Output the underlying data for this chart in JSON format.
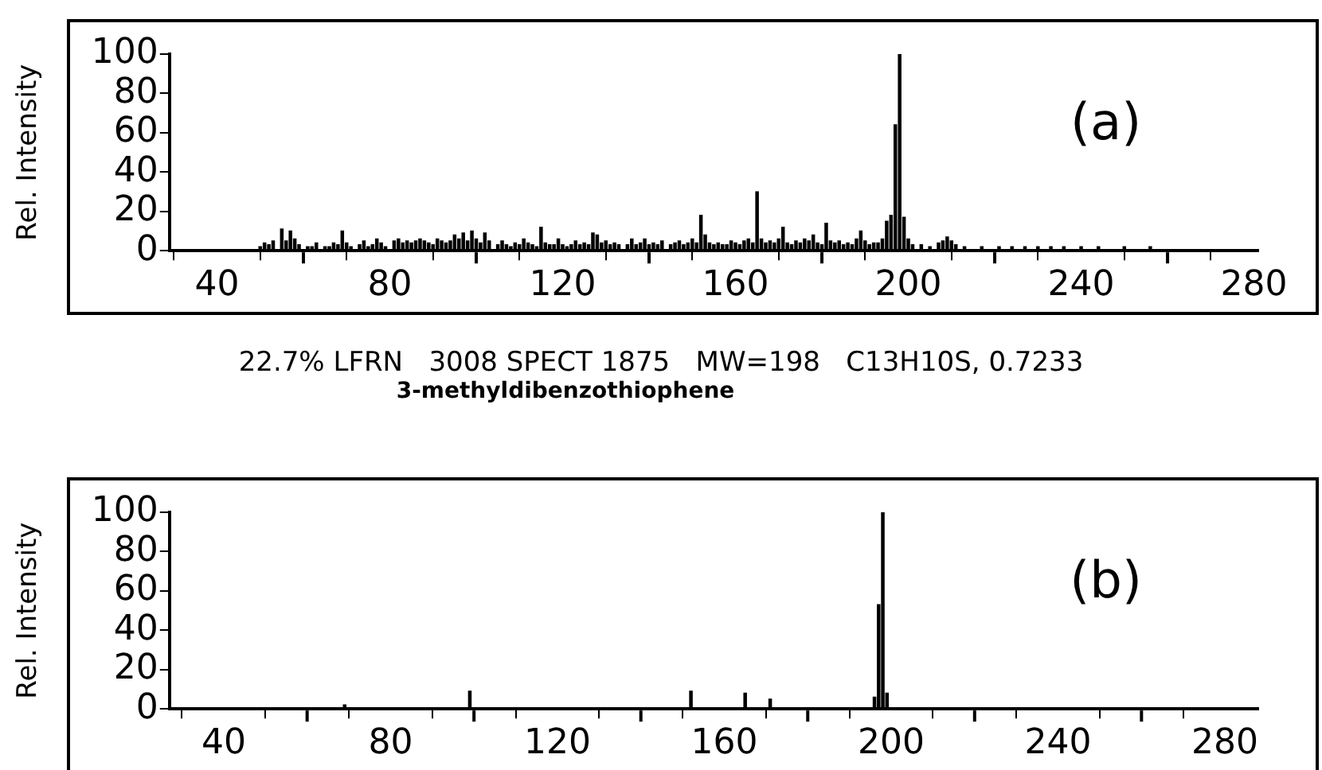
{
  "chart_data": [
    {
      "type": "bar",
      "ylabel": "Rel. Intensity",
      "annotations": [
        "(a)"
      ],
      "color": "#000000",
      "x": [
        50,
        51,
        52,
        53,
        55,
        56,
        57,
        58,
        59,
        61,
        62,
        63,
        65,
        66,
        67,
        68,
        69,
        70,
        71,
        73,
        74,
        75,
        76,
        77,
        78,
        79,
        81,
        82,
        83,
        84,
        85,
        86,
        87,
        88,
        89,
        90,
        91,
        92,
        93,
        94,
        95,
        96,
        97,
        98,
        99,
        100,
        101,
        102,
        103,
        105,
        106,
        107,
        108,
        109,
        110,
        111,
        112,
        113,
        114,
        115,
        116,
        117,
        118,
        119,
        120,
        121,
        122,
        123,
        124,
        125,
        126,
        127,
        128,
        129,
        130,
        131,
        132,
        133,
        135,
        136,
        137,
        138,
        139,
        140,
        141,
        142,
        143,
        145,
        146,
        147,
        148,
        149,
        150,
        151,
        152,
        153,
        154,
        155,
        156,
        157,
        158,
        159,
        160,
        161,
        162,
        163,
        164,
        165,
        166,
        167,
        168,
        169,
        170,
        171,
        172,
        173,
        174,
        175,
        176,
        177,
        178,
        179,
        180,
        181,
        182,
        183,
        184,
        185,
        186,
        187,
        188,
        189,
        190,
        191,
        192,
        193,
        194,
        195,
        196,
        197,
        198,
        199,
        200,
        201,
        203,
        205,
        207,
        208,
        209,
        210,
        211,
        213,
        217,
        221,
        224,
        227,
        230,
        233,
        236,
        240,
        244,
        250,
        256
      ],
      "values": [
        2,
        4,
        3,
        5,
        11,
        5,
        10,
        6,
        3,
        2,
        2,
        4,
        2,
        2,
        4,
        3,
        10,
        4,
        2,
        3,
        5,
        2,
        3,
        6,
        4,
        2,
        5,
        6,
        4,
        5,
        4,
        5,
        6,
        5,
        4,
        3,
        6,
        5,
        4,
        5,
        8,
        6,
        9,
        5,
        10,
        6,
        4,
        9,
        5,
        3,
        5,
        3,
        2,
        4,
        3,
        6,
        4,
        3,
        2,
        12,
        4,
        3,
        3,
        6,
        3,
        2,
        3,
        5,
        3,
        4,
        3,
        9,
        8,
        4,
        5,
        3,
        4,
        3,
        3,
        6,
        3,
        4,
        6,
        3,
        4,
        3,
        5,
        3,
        4,
        5,
        3,
        4,
        6,
        4,
        18,
        8,
        4,
        3,
        4,
        3,
        3,
        5,
        4,
        3,
        5,
        6,
        4,
        30,
        6,
        4,
        5,
        4,
        6,
        12,
        4,
        3,
        5,
        4,
        6,
        5,
        8,
        4,
        3,
        14,
        5,
        4,
        5,
        3,
        4,
        3,
        6,
        10,
        5,
        3,
        4,
        4,
        6,
        15,
        18,
        64,
        100,
        17,
        6,
        3,
        3,
        2,
        4,
        5,
        7,
        5,
        3,
        2,
        2,
        2,
        2,
        2,
        2,
        2,
        2,
        2,
        2,
        2,
        2
      ],
      "xlim": [
        29,
        281
      ],
      "xticks": [
        40,
        {
          "value": 60,
          "label": null
        },
        80,
        {
          "value": 100,
          "label": null
        },
        120,
        {
          "value": 140,
          "label": null
        },
        160,
        {
          "value": 180,
          "label": null
        },
        200,
        {
          "value": 220,
          "label": null
        },
        240,
        {
          "value": 260,
          "label": null
        },
        280
      ],
      "ylim": [
        0,
        100
      ],
      "yticks": [
        0,
        20,
        40,
        60,
        80,
        100
      ],
      "grid": false,
      "legend": false
    },
    {
      "type": "bar",
      "title": "22.7% LFRN   3008 SPECT 1875   MW=198   C13H10S, 0.7233",
      "subtitle": "3-methyldibenzothiophene",
      "ylabel": "Rel. Intensity",
      "annotations": [
        "(b)"
      ],
      "color": "#000000",
      "x": [
        69,
        99,
        152,
        165,
        171,
        196,
        197,
        198,
        199
      ],
      "values": [
        2,
        9,
        9,
        8,
        5,
        6,
        53,
        100,
        8
      ],
      "xlim": [
        27,
        288
      ],
      "xticks": [
        40,
        {
          "value": 60,
          "label": null
        },
        80,
        {
          "value": 100,
          "label": null
        },
        120,
        {
          "value": 140,
          "label": null
        },
        160,
        {
          "value": 180,
          "label": null
        },
        200,
        {
          "value": 220,
          "label": null
        },
        240,
        {
          "value": 260,
          "label": null
        },
        280
      ],
      "ylim": [
        0,
        100
      ],
      "yticks": [
        0,
        20,
        40,
        60,
        80,
        100
      ],
      "grid": false,
      "legend": false
    }
  ]
}
